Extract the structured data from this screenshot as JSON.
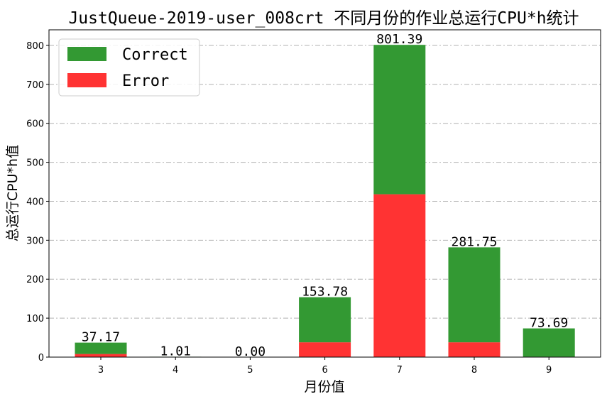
{
  "chart_data": {
    "type": "bar",
    "stacked": true,
    "title": "JustQueue-2019-user_008crt 不同月份的作业总运行CPU*h统计",
    "xlabel": "月份值",
    "ylabel": "总运行CPU*h值",
    "categories": [
      "3",
      "4",
      "5",
      "6",
      "7",
      "8",
      "9"
    ],
    "series": [
      {
        "name": "Error",
        "color": "#ff3333",
        "values": [
          8,
          0.5,
          0,
          38,
          418,
          38,
          1
        ]
      },
      {
        "name": "Correct",
        "color": "#339933",
        "values": [
          29.17,
          0.51,
          0,
          115.78,
          383.39,
          243.75,
          72.69
        ]
      }
    ],
    "totals": [
      "37.17",
      "1.01",
      "0.00",
      "153.78",
      "801.39",
      "281.75",
      "73.69"
    ],
    "ylim": [
      0,
      840
    ],
    "yticks": [
      0,
      100,
      200,
      300,
      400,
      500,
      600,
      700,
      800
    ],
    "grid": "horizontal",
    "legend_position": "top-left",
    "legend_order": [
      "Correct",
      "Error"
    ]
  }
}
